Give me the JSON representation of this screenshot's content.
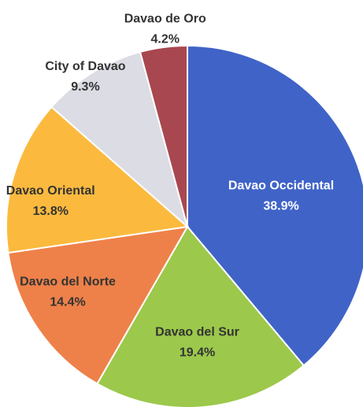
{
  "chart_data": {
    "type": "pie",
    "categories": [
      "Davao Occidental",
      "Davao del Sur",
      "Davao del Norte",
      "Davao Oriental",
      "City of Davao",
      "Davao de Oro"
    ],
    "values": [
      38.9,
      19.4,
      14.4,
      13.8,
      9.3,
      4.2
    ],
    "value_labels": [
      "38.9%",
      "19.4%",
      "14.4%",
      "13.8%",
      "9.3%",
      "4.2%"
    ],
    "colors": [
      "#4063c8",
      "#9cc84b",
      "#ee8149",
      "#fbba3e",
      "#dcdce4",
      "#a8474f"
    ]
  }
}
